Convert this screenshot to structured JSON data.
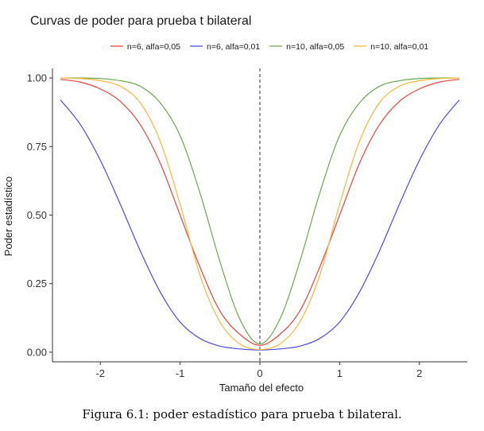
{
  "chart_data": {
    "type": "line",
    "title": "Curvas de poder para prueba t bilateral",
    "xlabel": "Tamaño del efecto",
    "ylabel": "Poder estadístico",
    "xlim": [
      -2.6,
      2.6
    ],
    "ylim": [
      -0.035,
      1.035
    ],
    "x_ticks": [
      -2,
      -1,
      0,
      1,
      2
    ],
    "x_tick_labels": [
      "-2",
      "-1",
      "0",
      "1",
      "2"
    ],
    "y_ticks": [
      0,
      0.25,
      0.5,
      0.75,
      1
    ],
    "y_tick_labels": [
      "0.00",
      "0.25",
      "0.50",
      "0.75",
      "1.00"
    ],
    "reference_line": {
      "x": 0,
      "style": "dashed"
    },
    "grid": false,
    "legend_position": "top",
    "x": [
      -2.5,
      -2.25,
      -2.0,
      -1.75,
      -1.5,
      -1.25,
      -1.0,
      -0.75,
      -0.5,
      -0.25,
      0.0,
      0.25,
      0.5,
      0.75,
      1.0,
      1.25,
      1.5,
      1.75,
      2.0,
      2.25,
      2.5
    ],
    "series": [
      {
        "name": "n=6, alfa=0,05",
        "color": "#e8453c",
        "values": [
          0.995,
          0.985,
          0.96,
          0.915,
          0.83,
          0.69,
          0.5,
          0.31,
          0.15,
          0.065,
          0.025,
          0.065,
          0.15,
          0.31,
          0.5,
          0.69,
          0.83,
          0.915,
          0.96,
          0.985,
          0.995
        ]
      },
      {
        "name": "n=6, alfa=0,01",
        "color": "#4a4ae6",
        "values": [
          0.92,
          0.83,
          0.7,
          0.54,
          0.37,
          0.22,
          0.11,
          0.05,
          0.022,
          0.012,
          0.008,
          0.012,
          0.022,
          0.05,
          0.11,
          0.22,
          0.37,
          0.54,
          0.7,
          0.83,
          0.92
        ]
      },
      {
        "name": "n=10, alfa=0,05",
        "color": "#6aa84f",
        "values": [
          1.0,
          1.0,
          0.998,
          0.99,
          0.97,
          0.91,
          0.79,
          0.58,
          0.33,
          0.12,
          0.03,
          0.12,
          0.33,
          0.58,
          0.79,
          0.91,
          0.97,
          0.99,
          0.998,
          1.0,
          1.0
        ]
      },
      {
        "name": "n=10, alfa=0,01",
        "color": "#f5b83a",
        "values": [
          1.0,
          0.998,
          0.99,
          0.97,
          0.91,
          0.77,
          0.54,
          0.28,
          0.11,
          0.03,
          0.01,
          0.03,
          0.11,
          0.28,
          0.54,
          0.77,
          0.91,
          0.97,
          0.99,
          0.998,
          1.0
        ]
      }
    ]
  },
  "caption": "Figura 6.1: poder estadístico para prueba t bilateral."
}
